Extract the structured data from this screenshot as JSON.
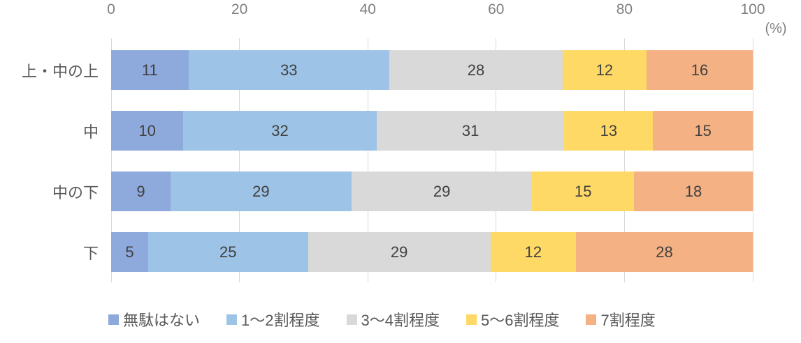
{
  "chart_data": {
    "type": "bar",
    "subtype": "horizontal-stacked-100",
    "title": "",
    "unit_label": "(%)",
    "categories": [
      "上・中の上",
      "中",
      "中の下",
      "下"
    ],
    "series": [
      {
        "name": "無駄はない",
        "color": "#8EA9DB",
        "values": [
          11,
          10,
          9,
          5
        ]
      },
      {
        "name": "1〜2割程度",
        "color": "#9DC3E6",
        "values": [
          33,
          32,
          29,
          25
        ]
      },
      {
        "name": "3〜4割程度",
        "color": "#D9D9D9",
        "values": [
          28,
          31,
          29,
          29
        ]
      },
      {
        "name": "5〜6割程度",
        "color": "#FFD966",
        "values": [
          12,
          13,
          15,
          12
        ]
      },
      {
        "name": "7割程度",
        "color": "#F4B183",
        "values": [
          16,
          15,
          18,
          28
        ]
      }
    ],
    "x_axis": {
      "position": "top",
      "range": [
        0,
        100
      ],
      "ticks": [
        0,
        20,
        40,
        60,
        80,
        100
      ]
    },
    "grid": true,
    "gridline_color": "#D9D9D9",
    "tick_label_color": "#808080",
    "value_label_color": "#404040",
    "category_label_color": "#595959",
    "legend_position": "bottom"
  }
}
